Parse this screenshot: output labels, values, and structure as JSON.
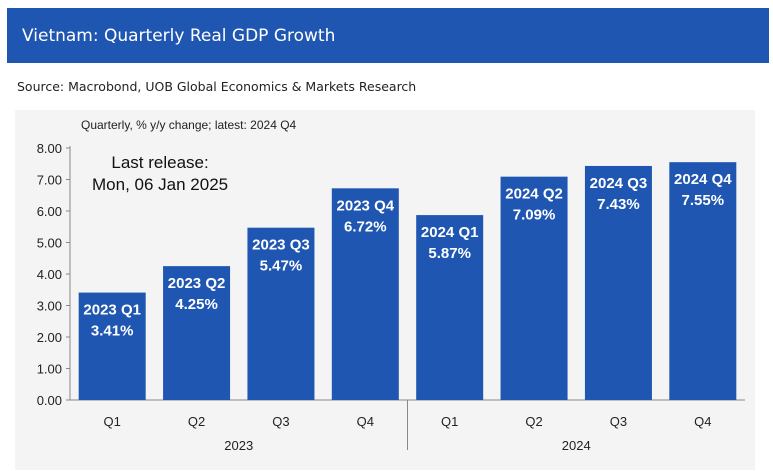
{
  "header": {
    "title": "Vietnam: Quarterly Real GDP Growth"
  },
  "source": "Source: Macrobond, UOB Global Economics & Markets Research",
  "colors": {
    "header_bg": "#1f56b2",
    "bar": "#1f56b2",
    "bar_label": "#ffffff"
  },
  "chart_data": {
    "type": "bar",
    "subtitle": "Quarterly, % y/y change; latest: 2024 Q4",
    "annotation": {
      "line1": "Last release:",
      "line2": "Mon, 06 Jan 2025"
    },
    "categories": [
      "Q1",
      "Q2",
      "Q3",
      "Q4",
      "Q1",
      "Q2",
      "Q3",
      "Q4"
    ],
    "year_groups": [
      {
        "label": "2023",
        "span": [
          0,
          3
        ]
      },
      {
        "label": "2024",
        "span": [
          4,
          7
        ]
      }
    ],
    "values": [
      3.41,
      4.25,
      5.47,
      6.72,
      5.87,
      7.09,
      7.43,
      7.55
    ],
    "data_labels": [
      [
        "2023 Q1",
        "3.41%"
      ],
      [
        "2023 Q2",
        "4.25%"
      ],
      [
        "2023 Q3",
        "5.47%"
      ],
      [
        "2023 Q4",
        "6.72%"
      ],
      [
        "2024 Q1",
        "5.87%"
      ],
      [
        "2024 Q2",
        "7.09%"
      ],
      [
        "2024 Q3",
        "7.43%"
      ],
      [
        "2024 Q4",
        "7.55%"
      ]
    ],
    "y_ticks": [
      "0.00",
      "1.00",
      "2.00",
      "3.00",
      "4.00",
      "5.00",
      "6.00",
      "7.00",
      "8.00"
    ],
    "ylim": [
      0,
      8
    ],
    "grid": false
  }
}
